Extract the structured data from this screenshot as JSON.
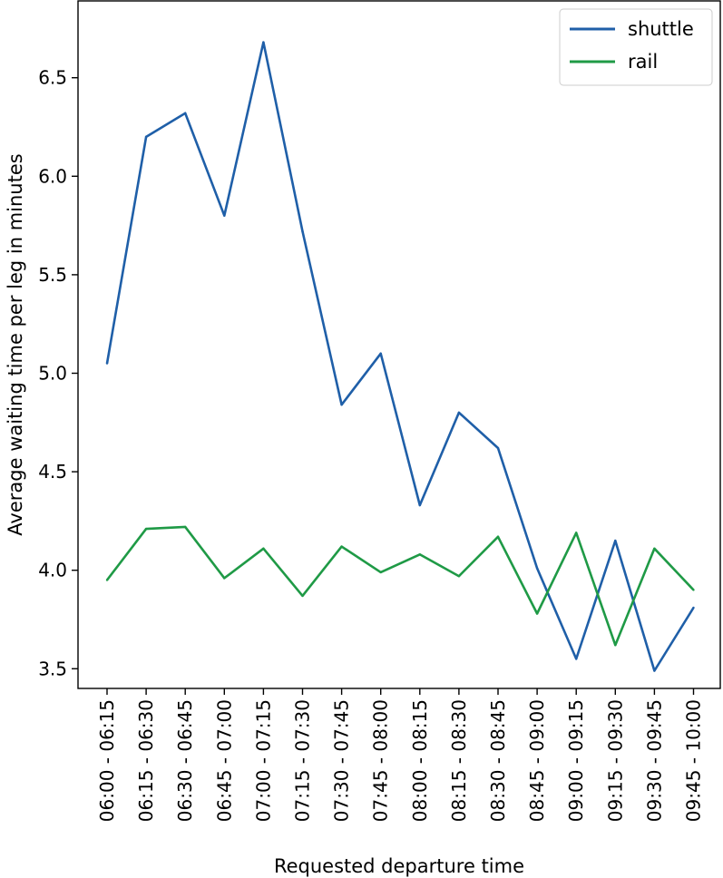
{
  "chart_data": {
    "type": "line",
    "title": "",
    "xlabel": "Requested departure time",
    "ylabel": "Average waiting time per leg in minutes",
    "categories": [
      "06:00 - 06:15",
      "06:15 - 06:30",
      "06:30 - 06:45",
      "06:45 - 07:00",
      "07:00 - 07:15",
      "07:15 - 07:30",
      "07:30 - 07:45",
      "07:45 - 08:00",
      "08:00 - 08:15",
      "08:15 - 08:30",
      "08:30 - 08:45",
      "08:45 - 09:00",
      "09:00 - 09:15",
      "09:15 - 09:30",
      "09:30 - 09:45",
      "09:45 - 10:00"
    ],
    "series": [
      {
        "name": "shuttle",
        "color": "#1f5fa8",
        "values": [
          5.05,
          6.2,
          6.32,
          5.8,
          6.68,
          5.72,
          4.84,
          5.1,
          4.33,
          4.8,
          4.62,
          4.01,
          3.55,
          4.15,
          3.49,
          3.81
        ]
      },
      {
        "name": "rail",
        "color": "#1f9a46",
        "values": [
          3.95,
          4.21,
          4.22,
          3.96,
          4.11,
          3.87,
          4.12,
          3.99,
          4.08,
          3.97,
          4.17,
          3.78,
          4.19,
          3.62,
          4.11,
          3.9
        ]
      }
    ],
    "yticks": [
      3.5,
      4.0,
      4.5,
      5.0,
      5.5,
      6.0,
      6.5
    ],
    "ylim": [
      3.4,
      6.89
    ],
    "grid": false,
    "legend_position": "top-right"
  }
}
